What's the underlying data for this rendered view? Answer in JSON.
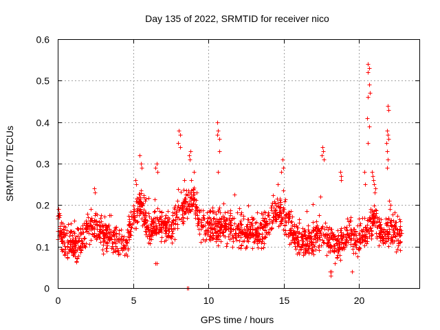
{
  "chart_data": {
    "type": "scatter",
    "title": "Day 135 of 2022, SRMTID for receiver nico",
    "xlabel": "GPS time / hours",
    "ylabel": "SRMTID / TECUs",
    "xlim": [
      0,
      24
    ],
    "ylim": [
      0,
      0.6
    ],
    "xticks": [
      0,
      5,
      10,
      15,
      20
    ],
    "xtick_labels": [
      "0",
      "5",
      "10",
      "15",
      "20"
    ],
    "yticks": [
      0,
      0.1,
      0.2,
      0.3,
      0.4,
      0.5,
      0.6
    ],
    "ytick_labels": [
      "0",
      "0.1",
      "0.2",
      "0.3",
      "0.4",
      "0.5",
      "0.6"
    ],
    "grid": true,
    "marker": "+",
    "color": "#ff0000",
    "profile": {
      "description": "typical level of the dense point cloud (hour, TECU)",
      "x": [
        0,
        0.5,
        1,
        1.5,
        2,
        2.5,
        3,
        3.5,
        4,
        4.5,
        5,
        5.5,
        6,
        6.5,
        7,
        7.5,
        8,
        8.5,
        9,
        9.5,
        10,
        10.5,
        11,
        11.5,
        12,
        12.5,
        13,
        13.5,
        14,
        14.5,
        15,
        15.5,
        16,
        16.5,
        17,
        17.5,
        18,
        18.5,
        19,
        19.5,
        20,
        20.5,
        21,
        21.5,
        22,
        22.5,
        22.8
      ],
      "y": [
        0.15,
        0.11,
        0.1,
        0.11,
        0.14,
        0.15,
        0.13,
        0.12,
        0.11,
        0.1,
        0.17,
        0.2,
        0.14,
        0.15,
        0.15,
        0.14,
        0.18,
        0.2,
        0.22,
        0.15,
        0.15,
        0.15,
        0.15,
        0.14,
        0.14,
        0.13,
        0.13,
        0.14,
        0.16,
        0.19,
        0.17,
        0.14,
        0.12,
        0.11,
        0.12,
        0.13,
        0.11,
        0.1,
        0.12,
        0.13,
        0.12,
        0.14,
        0.17,
        0.13,
        0.14,
        0.13,
        0.12
      ],
      "spread": 0.035,
      "points_per_hour": 85
    },
    "points": [
      {
        "x": 0.05,
        "y": 0.19
      },
      {
        "x": 0.1,
        "y": 0.18
      },
      {
        "x": 2.4,
        "y": 0.24
      },
      {
        "x": 2.45,
        "y": 0.23
      },
      {
        "x": 5.15,
        "y": 0.26
      },
      {
        "x": 5.2,
        "y": 0.25
      },
      {
        "x": 5.45,
        "y": 0.32
      },
      {
        "x": 5.5,
        "y": 0.3
      },
      {
        "x": 5.55,
        "y": 0.29
      },
      {
        "x": 6.5,
        "y": 0.29
      },
      {
        "x": 6.55,
        "y": 0.3
      },
      {
        "x": 6.6,
        "y": 0.28
      },
      {
        "x": 6.5,
        "y": 0.06
      },
      {
        "x": 6.55,
        "y": 0.06
      },
      {
        "x": 8.05,
        "y": 0.38
      },
      {
        "x": 8.1,
        "y": 0.37
      },
      {
        "x": 8.0,
        "y": 0.35
      },
      {
        "x": 8.1,
        "y": 0.34
      },
      {
        "x": 8.6,
        "y": 0.0
      },
      {
        "x": 8.65,
        "y": 0.0
      },
      {
        "x": 8.7,
        "y": 0.32
      },
      {
        "x": 8.75,
        "y": 0.31
      },
      {
        "x": 8.8,
        "y": 0.33
      },
      {
        "x": 9.05,
        "y": 0.28
      },
      {
        "x": 10.6,
        "y": 0.4
      },
      {
        "x": 10.65,
        "y": 0.38
      },
      {
        "x": 10.6,
        "y": 0.37
      },
      {
        "x": 10.7,
        "y": 0.36
      },
      {
        "x": 10.7,
        "y": 0.33
      },
      {
        "x": 10.65,
        "y": 0.28
      },
      {
        "x": 14.9,
        "y": 0.31
      },
      {
        "x": 14.95,
        "y": 0.29
      },
      {
        "x": 14.85,
        "y": 0.28
      },
      {
        "x": 17.55,
        "y": 0.34
      },
      {
        "x": 17.6,
        "y": 0.33
      },
      {
        "x": 17.5,
        "y": 0.32
      },
      {
        "x": 17.65,
        "y": 0.31
      },
      {
        "x": 17.45,
        "y": 0.22
      },
      {
        "x": 18.1,
        "y": 0.03
      },
      {
        "x": 18.05,
        "y": 0.04
      },
      {
        "x": 18.15,
        "y": 0.04
      },
      {
        "x": 19.55,
        "y": 0.04
      },
      {
        "x": 18.75,
        "y": 0.28
      },
      {
        "x": 18.8,
        "y": 0.27
      },
      {
        "x": 18.8,
        "y": 0.26
      },
      {
        "x": 20.35,
        "y": 0.28
      },
      {
        "x": 20.4,
        "y": 0.25
      },
      {
        "x": 20.6,
        "y": 0.54
      },
      {
        "x": 20.65,
        "y": 0.53
      },
      {
        "x": 20.6,
        "y": 0.52
      },
      {
        "x": 20.65,
        "y": 0.49
      },
      {
        "x": 20.7,
        "y": 0.47
      },
      {
        "x": 20.6,
        "y": 0.46
      },
      {
        "x": 20.55,
        "y": 0.41
      },
      {
        "x": 20.65,
        "y": 0.39
      },
      {
        "x": 20.6,
        "y": 0.35
      },
      {
        "x": 20.85,
        "y": 0.28
      },
      {
        "x": 20.9,
        "y": 0.27
      },
      {
        "x": 20.95,
        "y": 0.26
      },
      {
        "x": 21.0,
        "y": 0.25
      },
      {
        "x": 21.05,
        "y": 0.23
      },
      {
        "x": 21.1,
        "y": 0.24
      },
      {
        "x": 21.9,
        "y": 0.44
      },
      {
        "x": 21.95,
        "y": 0.43
      },
      {
        "x": 21.85,
        "y": 0.38
      },
      {
        "x": 21.9,
        "y": 0.37
      },
      {
        "x": 21.95,
        "y": 0.36
      },
      {
        "x": 21.8,
        "y": 0.35
      },
      {
        "x": 21.85,
        "y": 0.33
      },
      {
        "x": 21.9,
        "y": 0.31
      },
      {
        "x": 21.85,
        "y": 0.29
      },
      {
        "x": 22.0,
        "y": 0.21
      },
      {
        "x": 22.1,
        "y": 0.2
      },
      {
        "x": 22.05,
        "y": 0.19
      },
      {
        "x": 22.7,
        "y": 0.15
      },
      {
        "x": 22.75,
        "y": 0.14
      }
    ]
  }
}
